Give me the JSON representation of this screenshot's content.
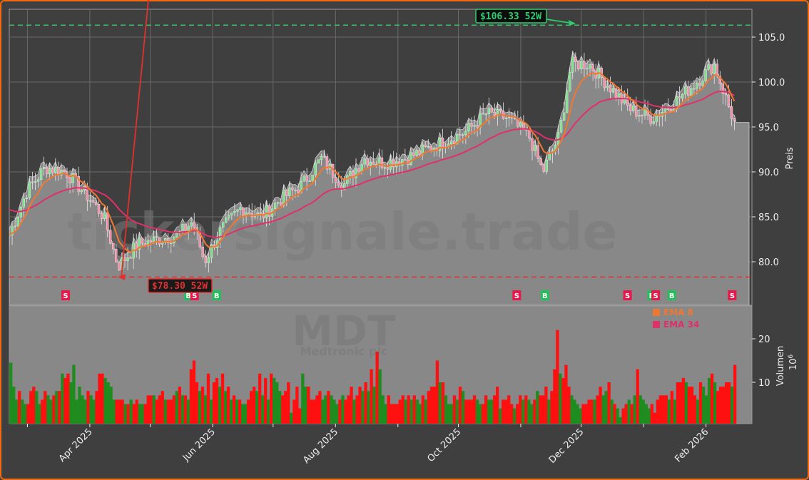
{
  "chart_data": [
    {
      "type": "candlestick",
      "title": "",
      "ticker": "MDT",
      "company": "Medtronic plc",
      "watermark": "tickersignale.trade",
      "ylabel": "Preis",
      "ylim": [
        75.5,
        108
      ],
      "yticks": [
        80.0,
        85.0,
        90.0,
        95.0,
        100.0,
        105.0
      ],
      "ytick_labels": [
        "80.0",
        "85.0",
        "90.0",
        "95.0",
        "100.0",
        "105.0"
      ],
      "x_tick_labels": [
        "Apr 2025",
        "Jun 2025",
        "Aug 2025",
        "Oct 2025",
        "Dec 2025",
        "Feb 2026"
      ],
      "grid": true,
      "annotations": {
        "high_52w": {
          "value": 106.33,
          "label": "$106.33 52W",
          "color": "#2ecc71"
        },
        "low_52w": {
          "value": 78.3,
          "label": "$78.30 52W",
          "color": "#e03030"
        }
      },
      "approx_close_series": {
        "x": [
          "2025-02-20",
          "2025-03-01",
          "2025-03-10",
          "2025-03-20",
          "2025-04-01",
          "2025-04-08",
          "2025-04-15",
          "2025-04-25",
          "2025-05-05",
          "2025-05-15",
          "2025-05-22",
          "2025-05-28",
          "2025-06-05",
          "2025-06-15",
          "2025-06-25",
          "2025-07-05",
          "2025-07-15",
          "2025-07-25",
          "2025-08-05",
          "2025-08-15",
          "2025-08-25",
          "2025-09-05",
          "2025-09-15",
          "2025-09-25",
          "2025-10-05",
          "2025-10-15",
          "2025-10-25",
          "2025-11-05",
          "2025-11-12",
          "2025-11-20",
          "2025-11-26",
          "2025-12-05",
          "2025-12-15",
          "2025-12-25",
          "2026-01-05",
          "2026-01-15",
          "2026-01-25",
          "2026-02-05",
          "2026-02-15"
        ],
        "values": [
          83,
          88,
          90.5,
          90,
          87,
          85,
          79.5,
          82,
          82.5,
          83,
          84.5,
          80,
          83.5,
          86,
          85,
          87,
          88.5,
          91.5,
          88.5,
          91.5,
          91,
          91.5,
          92.5,
          93.5,
          94.5,
          96.5,
          96,
          94,
          90,
          94,
          102,
          102,
          99.5,
          97,
          96,
          97.5,
          99.5,
          102,
          95.5
        ]
      },
      "series": [
        {
          "name": "EMA 8",
          "color": "#f07830"
        },
        {
          "name": "EMA 34",
          "color": "#e0306a"
        }
      ],
      "signals": [
        {
          "type": "S",
          "date": "2025-03-20"
        },
        {
          "type": "B",
          "date": "2025-05-20"
        },
        {
          "type": "S",
          "date": "2025-05-23"
        },
        {
          "type": "B",
          "date": "2025-06-03"
        },
        {
          "type": "S",
          "date": "2025-10-30"
        },
        {
          "type": "B",
          "date": "2025-11-13"
        },
        {
          "type": "S",
          "date": "2025-12-24"
        },
        {
          "type": "B",
          "date": "2026-01-05"
        },
        {
          "type": "S",
          "date": "2026-01-07"
        },
        {
          "type": "B",
          "date": "2026-01-15"
        },
        {
          "type": "S",
          "date": "2026-02-14"
        }
      ]
    },
    {
      "type": "bar",
      "ylabel": "Volumen",
      "yscale_label": "10^6",
      "yticks": [
        10,
        20
      ],
      "ylim": [
        1,
        30
      ],
      "legend": [
        {
          "label": "EMA 8",
          "color": "#f07830"
        },
        {
          "label": "EMA 34",
          "color": "#e0306a"
        }
      ],
      "values_millions": [
        14.5,
        9,
        6,
        8,
        6,
        5,
        5,
        8,
        9,
        8,
        5,
        6,
        8,
        7,
        6,
        7,
        8,
        8,
        12,
        11,
        12,
        10,
        14,
        6,
        9,
        7,
        6,
        8,
        7,
        6,
        8,
        12,
        12,
        11,
        10,
        9,
        6,
        6,
        6,
        6,
        5,
        5,
        6,
        5,
        6,
        5,
        5,
        5,
        7,
        7,
        7,
        6,
        7,
        8,
        6,
        6,
        6,
        7,
        8,
        9,
        7,
        7,
        6,
        13,
        15,
        10,
        8,
        9,
        7,
        12,
        6,
        10,
        11,
        9,
        12,
        8,
        9,
        6,
        7,
        6,
        6,
        5,
        5,
        6,
        8,
        9,
        8,
        12,
        7,
        11,
        6,
        12,
        11,
        10,
        8,
        7,
        8,
        10,
        3,
        6,
        9,
        4,
        12,
        9,
        9,
        6,
        6,
        7,
        8,
        6,
        7,
        8,
        7,
        6,
        5,
        6,
        7,
        6,
        7,
        9,
        6,
        7,
        9,
        8,
        10,
        8,
        13,
        9,
        17,
        13,
        7,
        5,
        7,
        5,
        5,
        5,
        6,
        7,
        6,
        7,
        6,
        7,
        6,
        5,
        7,
        6,
        8,
        9,
        9,
        15,
        10,
        10,
        7,
        5,
        5,
        7,
        6,
        9,
        8,
        6,
        6,
        6,
        7,
        6,
        5,
        5,
        7,
        6,
        6,
        7,
        9,
        4,
        6,
        6,
        7,
        5,
        4,
        5,
        7,
        6,
        7,
        6,
        5,
        6,
        8,
        7,
        7,
        9,
        6,
        8,
        13,
        22,
        12,
        11,
        14,
        9,
        7,
        6,
        5,
        4,
        5,
        5,
        6,
        6,
        6,
        7,
        9,
        7,
        8,
        10,
        6,
        5,
        4,
        2,
        4,
        5,
        6,
        5,
        7,
        13,
        7,
        6,
        5,
        4,
        5,
        3,
        6,
        7,
        7,
        7,
        6,
        8,
        6,
        10,
        10,
        11,
        10,
        9,
        9,
        7,
        6,
        10,
        9,
        7,
        11,
        12,
        10,
        8,
        9,
        9,
        10,
        10,
        9,
        14
      ]
    }
  ]
}
